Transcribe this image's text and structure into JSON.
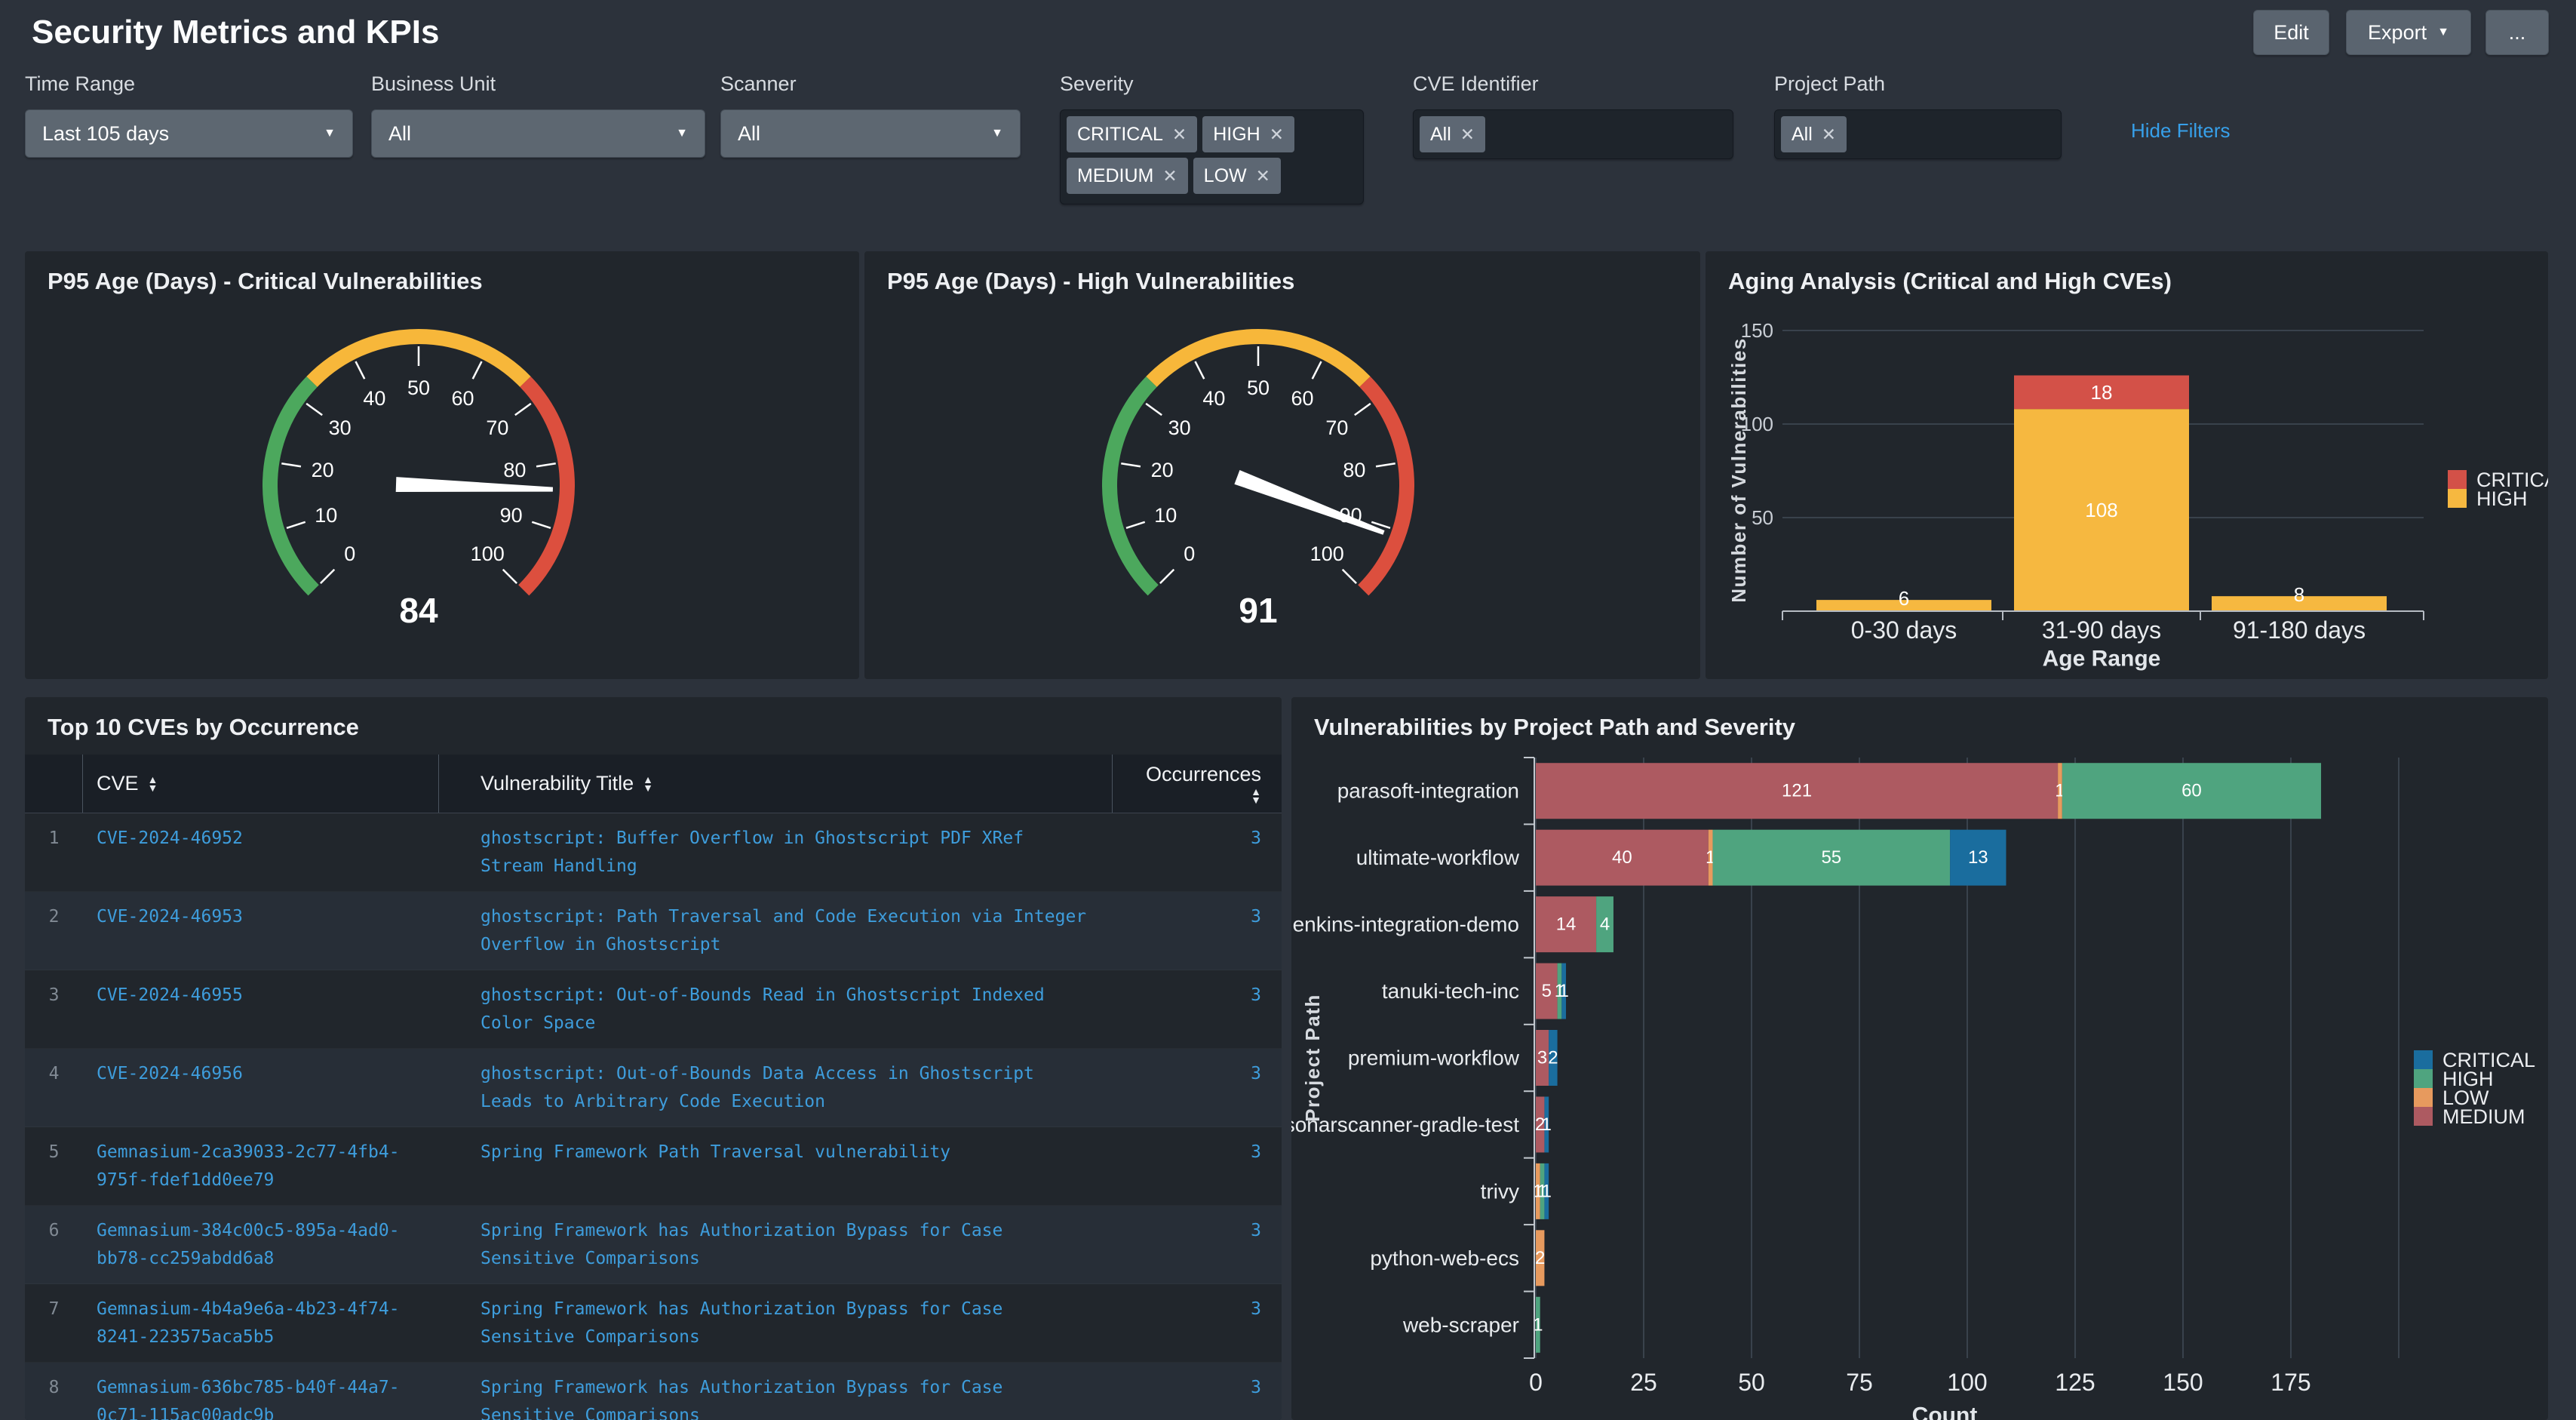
{
  "page": {
    "title": "Security Metrics and KPIs"
  },
  "toolbar": {
    "edit_label": "Edit",
    "export_label": "Export",
    "more_label": "..."
  },
  "filters": {
    "hide_filters_label": "Hide Filters",
    "items": [
      {
        "id": "time-range",
        "label": "Time Range",
        "type": "select",
        "value": "Last 105 days"
      },
      {
        "id": "business-unit",
        "label": "Business Unit",
        "type": "select",
        "value": "All"
      },
      {
        "id": "scanner",
        "label": "Scanner",
        "type": "select",
        "value": "All"
      },
      {
        "id": "severity",
        "label": "Severity",
        "type": "multiselect",
        "chips": [
          "CRITICAL",
          "HIGH",
          "MEDIUM",
          "LOW"
        ]
      },
      {
        "id": "cve-identifier",
        "label": "CVE Identifier",
        "type": "token-input",
        "chips": [
          "All"
        ]
      },
      {
        "id": "project-path",
        "label": "Project Path",
        "type": "token-input",
        "chips": [
          "All"
        ]
      }
    ]
  },
  "panels": {
    "gauge_critical": {
      "title": "P95 Age (Days) - Critical Vulnerabilities"
    },
    "gauge_high": {
      "title": "P95 Age (Days) - High Vulnerabilities"
    },
    "aging": {
      "title": "Aging Analysis (Critical and High CVEs)"
    },
    "top_cves": {
      "title": "Top 10 CVEs by Occurrence"
    },
    "by_project": {
      "title": "Vulnerabilities by Project Path and Severity"
    }
  },
  "table": {
    "header": {
      "cve": "CVE",
      "title": "Vulnerability Title",
      "occurrences": "Occurrences"
    },
    "rows": [
      {
        "index": 1,
        "cve": "CVE-2024-46952",
        "title": "ghostscript: Buffer Overflow in Ghostscript PDF XRef Stream Handling",
        "occurrences": 3
      },
      {
        "index": 2,
        "cve": "CVE-2024-46953",
        "title": "ghostscript: Path Traversal and Code Execution via Integer Overflow in Ghostscript",
        "occurrences": 3
      },
      {
        "index": 3,
        "cve": "CVE-2024-46955",
        "title": "ghostscript: Out-of-Bounds Read in Ghostscript Indexed Color Space",
        "occurrences": 3
      },
      {
        "index": 4,
        "cve": "CVE-2024-46956",
        "title": "ghostscript: Out-of-Bounds Data Access in Ghostscript Leads to Arbitrary Code Execution",
        "occurrences": 3
      },
      {
        "index": 5,
        "cve": "Gemnasium-2ca39033-2c77-4fb4-975f-fdef1dd0ee79",
        "title": "Spring Framework Path Traversal vulnerability",
        "occurrences": 3
      },
      {
        "index": 6,
        "cve": "Gemnasium-384c00c5-895a-4ad0-bb78-cc259abdd6a8",
        "title": "Spring Framework has Authorization Bypass for Case Sensitive Comparisons",
        "occurrences": 3
      },
      {
        "index": 7,
        "cve": "Gemnasium-4b4a9e6a-4b23-4f74-8241-223575aca5b5",
        "title": "Spring Framework has Authorization Bypass for Case Sensitive Comparisons",
        "occurrences": 3
      },
      {
        "index": 8,
        "cve": "Gemnasium-636bc785-b40f-44a7-0c71-115ac00adc9b",
        "title": "Spring Framework has Authorization Bypass for Case Sensitive Comparisons",
        "occurrences": 3
      }
    ]
  },
  "chart_data": [
    {
      "type": "gauge",
      "title": "P95 Age (Days) - Critical Vulnerabilities",
      "value": 84,
      "min": 0,
      "max": 100,
      "tick_step": 10,
      "bands": [
        {
          "to": 33,
          "color": "#4ca85d",
          "label": "green"
        },
        {
          "to": 67,
          "color": "#f7b73a",
          "label": "yellow"
        },
        {
          "to": 100,
          "color": "#dc4f3e",
          "label": "red"
        }
      ]
    },
    {
      "type": "gauge",
      "title": "P95 Age (Days) - High Vulnerabilities",
      "value": 91,
      "min": 0,
      "max": 100,
      "tick_step": 10,
      "bands": [
        {
          "to": 33,
          "color": "#4ca85d",
          "label": "green"
        },
        {
          "to": 67,
          "color": "#f7b73a",
          "label": "yellow"
        },
        {
          "to": 100,
          "color": "#dc4f3e",
          "label": "red"
        }
      ]
    },
    {
      "type": "bar",
      "title": "Aging Analysis (Critical and High CVEs)",
      "stacked": true,
      "categories": [
        "0-30 days",
        "31-90 days",
        "91-180 days"
      ],
      "series": [
        {
          "name": "HIGH",
          "color": "#f6b840",
          "values": [
            6,
            108,
            8
          ]
        },
        {
          "name": "CRITICAL",
          "color": "#d35148",
          "values": [
            0,
            18,
            0
          ]
        }
      ],
      "xlabel": "Age Range",
      "ylabel": "Number of Vulnerabilities",
      "yticks": [
        50,
        100,
        150
      ],
      "ylim": [
        0,
        160
      ],
      "grid": true,
      "legend": [
        "CRITICAL",
        "HIGH"
      ],
      "legend_position": "right"
    },
    {
      "type": "hbar",
      "title": "Vulnerabilities by Project Path and Severity",
      "stacked": true,
      "categories": [
        "parasoft-integration",
        "ultimate-workflow",
        "jenkins-integration-demo",
        "tanuki-tech-inc",
        "premium-workflow",
        "sonarscanner-gradle-test",
        "trivy",
        "python-web-ecs",
        "web-scraper"
      ],
      "series": [
        {
          "name": "MEDIUM",
          "color": "#ad5a61",
          "values": [
            121,
            40,
            14,
            5,
            3,
            2,
            0,
            0,
            0
          ]
        },
        {
          "name": "LOW",
          "color": "#e79a5e",
          "values": [
            1,
            1,
            0,
            0,
            0,
            0,
            1,
            2,
            0
          ]
        },
        {
          "name": "HIGH",
          "color": "#4fa47f",
          "values": [
            60,
            55,
            4,
            1,
            0,
            0,
            1,
            0,
            1
          ]
        },
        {
          "name": "CRITICAL",
          "color": "#1a6d9e",
          "values": [
            0,
            13,
            0,
            1,
            2,
            1,
            1,
            0,
            0
          ]
        }
      ],
      "xlabel": "Count",
      "ylabel": "Project Path",
      "xticks": [
        0,
        25,
        50,
        75,
        100,
        125,
        150,
        175
      ],
      "xlim": [
        0,
        200
      ],
      "grid": true,
      "legend": [
        "CRITICAL",
        "HIGH",
        "LOW",
        "MEDIUM"
      ],
      "legend_position": "right"
    }
  ],
  "colors": {
    "page_bg": "#2c323b",
    "panel_bg": "#21262c",
    "table_header_bg": "#1a1f26",
    "row_alt_bg": "#272e37",
    "link_blue": "#3e9ddc",
    "hide_filters_blue": "#37a0ea",
    "control_gray": "#5d6771",
    "input_bg": "#1e242b",
    "gauge_green": "#4ca85d",
    "gauge_yellow": "#f7b73a",
    "gauge_red": "#dc4f3e",
    "critical_red": "#d35148",
    "high_yellow": "#f6b840",
    "hbar_critical": "#1a6d9e",
    "hbar_high": "#4fa47f",
    "hbar_low": "#e79a5e",
    "hbar_medium": "#ad5a61",
    "grid_line": "#39424c",
    "axis_line": "#b6bcc4"
  }
}
